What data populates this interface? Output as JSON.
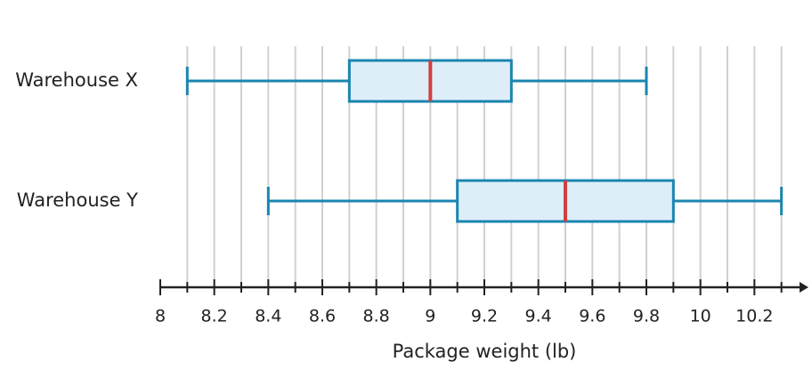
{
  "chart_data": {
    "type": "boxplot",
    "orientation": "horizontal",
    "x_label": "Package weight (lb)",
    "series": [
      {
        "name": "Warehouse X",
        "min": 8.1,
        "q1": 8.7,
        "median": 9,
        "q3": 9.3,
        "max": 9.8
      },
      {
        "name": "Warehouse Y",
        "min": 8.4,
        "q1": 9.1,
        "median": 9.5,
        "q3": 9.9,
        "max": 10.3
      }
    ],
    "xlim": [
      8,
      10.4
    ],
    "xticks": [
      8,
      8.2,
      8.4,
      8.6,
      8.8,
      9,
      9.2,
      9.4,
      9.6,
      9.8,
      10,
      10.2
    ],
    "xticks_minor": [
      8.1,
      8.3,
      8.5,
      8.7,
      8.9,
      9.1,
      9.3,
      9.5,
      9.7,
      9.9,
      10.1,
      10.3
    ],
    "grid": true,
    "box_fill": "#ddeef9",
    "box_stroke": "#1a85b0",
    "median_color": "#d04040"
  }
}
